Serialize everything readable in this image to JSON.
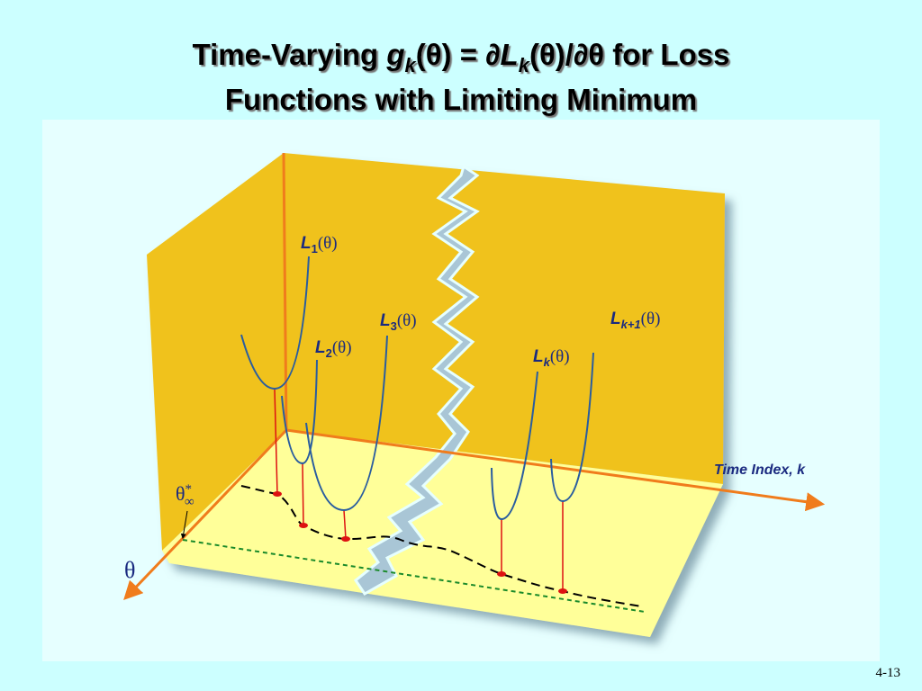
{
  "title": {
    "parts": [
      "Time-Varying ",
      "g",
      "k",
      "(θ) = ∂",
      "L",
      "k",
      "(θ)/∂θ for Loss",
      "Functions with Limiting Minimum"
    ]
  },
  "curves": [
    {
      "letter": "L",
      "index": "1",
      "arg": "(θ)"
    },
    {
      "letter": "L",
      "index": "2",
      "arg": "(θ)"
    },
    {
      "letter": "L",
      "index": "3",
      "arg": "(θ)"
    },
    {
      "letter": "L",
      "index": "k",
      "arg": "(θ)"
    },
    {
      "letter": "L",
      "index": "k+1",
      "arg": "(θ)"
    }
  ],
  "axes": {
    "time": "Time Index, k",
    "theta": "θ"
  },
  "limit": {
    "symbol": "θ",
    "sup": "*",
    "sub": "∞"
  },
  "page_number": "4-13"
}
